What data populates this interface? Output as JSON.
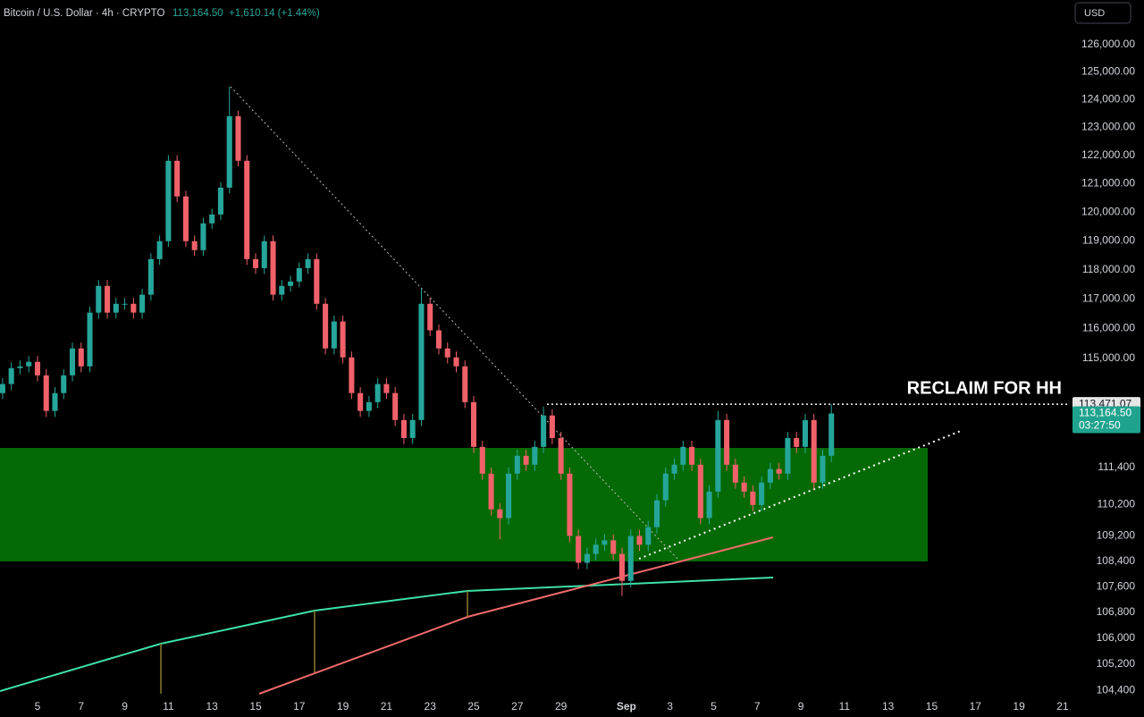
{
  "chart_data": {
    "type": "candlestick",
    "symbol": "Bitcoin / U.S. Dollar · 4h · CRYPTO",
    "last_price_label": "113,164.50",
    "change_label": "+1,610.14 (+1.44%)",
    "currency": "USD",
    "countdown": "03:27:50",
    "annotation": "RECLAIM FOR HH",
    "level": {
      "value": 113471.07,
      "label": "113,471.07"
    },
    "log_scale": true,
    "grid": false,
    "up_color": "#26a69a",
    "down_color": "#f0616a",
    "xlim": [
      -1.72,
      47.25
    ],
    "ylim": [
      104050,
      127650
    ],
    "xticks": [
      {
        "value": 0,
        "label": "5"
      },
      {
        "value": 2,
        "label": "7"
      },
      {
        "value": 4,
        "label": "9"
      },
      {
        "value": 6,
        "label": "11"
      },
      {
        "value": 8,
        "label": "13"
      },
      {
        "value": 10,
        "label": "15"
      },
      {
        "value": 12,
        "label": "17"
      },
      {
        "value": 14,
        "label": "19"
      },
      {
        "value": 16,
        "label": "21"
      },
      {
        "value": 18,
        "label": "23"
      },
      {
        "value": 20,
        "label": "25"
      },
      {
        "value": 22,
        "label": "27"
      },
      {
        "value": 24,
        "label": "29"
      },
      {
        "value": 27,
        "label": "Sep"
      },
      {
        "value": 29,
        "label": "3"
      },
      {
        "value": 31,
        "label": "5"
      },
      {
        "value": 33,
        "label": "7"
      },
      {
        "value": 35,
        "label": "9"
      },
      {
        "value": 37,
        "label": "11"
      },
      {
        "value": 39,
        "label": "13"
      },
      {
        "value": 41,
        "label": "15"
      },
      {
        "value": 43,
        "label": "17"
      },
      {
        "value": 45,
        "label": "19"
      },
      {
        "value": 47,
        "label": "21"
      }
    ],
    "yticks": [
      {
        "value": 126000,
        "label": "126,000.00"
      },
      {
        "value": 125000,
        "label": "125,000.00"
      },
      {
        "value": 124000,
        "label": "124,000.00"
      },
      {
        "value": 123000,
        "label": "123,000.00"
      },
      {
        "value": 122000,
        "label": "122,000.00"
      },
      {
        "value": 121000,
        "label": "121,000.00"
      },
      {
        "value": 120000,
        "label": "120,000.00"
      },
      {
        "value": 119000,
        "label": "119,000.00"
      },
      {
        "value": 118000,
        "label": "118,000.00"
      },
      {
        "value": 117000,
        "label": "117,000.00"
      },
      {
        "value": 116000,
        "label": "116,000.00"
      },
      {
        "value": 115000,
        "label": "115,000.00"
      },
      {
        "value": 111400,
        "label": "111,400"
      },
      {
        "value": 110200,
        "label": "110,200"
      },
      {
        "value": 109200,
        "label": "109,200"
      },
      {
        "value": 108400,
        "label": "108,400"
      },
      {
        "value": 107600,
        "label": "107,600"
      },
      {
        "value": 106800,
        "label": "106,800"
      },
      {
        "value": 106000,
        "label": "106,000"
      },
      {
        "value": 105200,
        "label": "105,200"
      },
      {
        "value": 104400,
        "label": "104,400"
      }
    ],
    "x": [
      -1.6,
      -1.2,
      -0.8,
      -0.4,
      0,
      0.4,
      0.8,
      1.2,
      1.6,
      2,
      2.4,
      2.8,
      3.2,
      3.6,
      4,
      4.4,
      4.8,
      5.2,
      5.6,
      6,
      6.4,
      6.8,
      7.2,
      7.6,
      8,
      8.4,
      8.8,
      9.2,
      9.6,
      10,
      10.4,
      10.8,
      11.2,
      11.6,
      12,
      12.4,
      12.8,
      13.2,
      13.6,
      14,
      14.4,
      14.8,
      15.2,
      15.6,
      16,
      16.4,
      16.8,
      17.2,
      17.6,
      18,
      18.4,
      18.8,
      19.2,
      19.6,
      20,
      20.4,
      20.8,
      21.2,
      21.6,
      22,
      22.4,
      22.8,
      23.2,
      23.6,
      24,
      24.4,
      24.8,
      25.2,
      25.6,
      26,
      26.4,
      26.8,
      27.2,
      27.6,
      28,
      28.4,
      28.8,
      29.2,
      29.6,
      30,
      30.4,
      30.8,
      31.2,
      31.6,
      32,
      32.4,
      32.8,
      33.2,
      33.6,
      34,
      34.4,
      34.8,
      35.2,
      35.6,
      36,
      36.4
    ],
    "open": [
      113840,
      114140,
      114670,
      114730,
      114880,
      114430,
      113250,
      113840,
      114430,
      115330,
      114730,
      116540,
      117450,
      116540,
      116840,
      116840,
      116540,
      117150,
      118370,
      118990,
      121810,
      120550,
      118990,
      118680,
      119610,
      119920,
      120860,
      123400,
      121810,
      118370,
      118060,
      118990,
      117150,
      117450,
      117600,
      118060,
      118370,
      116840,
      115330,
      116240,
      115030,
      113840,
      113250,
      113540,
      114140,
      113840,
      112950,
      112360,
      112950,
      116840,
      115940,
      115330,
      115030,
      114730,
      113540,
      112070,
      111200,
      110050,
      109770,
      111200,
      111780,
      111490,
      112070,
      113100,
      112360,
      111200,
      109200,
      108350,
      108630,
      108920,
      109060,
      108630,
      107780,
      109200,
      108920,
      109480,
      110340,
      111200,
      111490,
      112070,
      111490,
      109770,
      110620,
      112950,
      111490,
      110910,
      110620,
      110190,
      110910,
      111350,
      111200,
      112360,
      112070,
      112950,
      110910,
      111780
    ],
    "high": [
      114340,
      114870,
      114930,
      115080,
      115080,
      114630,
      114040,
      114630,
      115530,
      115530,
      116740,
      117650,
      117650,
      117040,
      117040,
      117040,
      117350,
      118570,
      119190,
      122010,
      122010,
      120750,
      119190,
      119810,
      120120,
      121060,
      124470,
      123600,
      122010,
      118570,
      119190,
      119190,
      117650,
      117800,
      118260,
      118570,
      118570,
      117040,
      116440,
      116440,
      115230,
      114040,
      113740,
      114340,
      114340,
      114040,
      113150,
      113150,
      117360,
      117040,
      116140,
      115530,
      115230,
      114930,
      113740,
      112270,
      111400,
      110250,
      111400,
      111980,
      111980,
      112270,
      113390,
      113300,
      112560,
      111400,
      109400,
      108830,
      109120,
      109260,
      109260,
      108830,
      109400,
      109400,
      109680,
      110540,
      111400,
      111690,
      112270,
      112270,
      111690,
      110820,
      113250,
      113150,
      111690,
      111110,
      110820,
      111110,
      111550,
      111550,
      112560,
      112560,
      113150,
      113150,
      111980,
      113470
    ],
    "low": [
      113640,
      113940,
      114470,
      114530,
      114230,
      113050,
      113050,
      113640,
      114230,
      114530,
      114530,
      116340,
      116340,
      116340,
      116640,
      116340,
      116340,
      116950,
      118170,
      118790,
      120350,
      118790,
      118480,
      118480,
      119410,
      119720,
      120660,
      121610,
      118170,
      117860,
      117860,
      116950,
      116950,
      117250,
      117400,
      117860,
      116640,
      115130,
      115130,
      114830,
      113640,
      113050,
      113050,
      113340,
      113640,
      112750,
      112160,
      112160,
      112750,
      115740,
      115130,
      114830,
      114530,
      113340,
      111870,
      111000,
      109850,
      109100,
      109570,
      111000,
      111290,
      111290,
      111870,
      112160,
      111000,
      109000,
      108150,
      108150,
      108430,
      108720,
      108430,
      107310,
      107580,
      108720,
      108720,
      109280,
      110140,
      111000,
      111290,
      111290,
      109570,
      109570,
      110420,
      111290,
      110710,
      110420,
      109990,
      109990,
      110710,
      111000,
      111000,
      111870,
      111870,
      110710,
      110710,
      111580
    ],
    "close": [
      114140,
      114670,
      114730,
      114880,
      114430,
      113250,
      113840,
      114430,
      115330,
      114730,
      116540,
      117450,
      116540,
      116840,
      116840,
      116540,
      117150,
      118370,
      118990,
      121810,
      120550,
      118990,
      118680,
      119610,
      119920,
      120860,
      123400,
      121810,
      118370,
      118060,
      118990,
      117150,
      117450,
      117600,
      118060,
      118370,
      116840,
      115330,
      116240,
      115030,
      113840,
      113250,
      113540,
      114140,
      113840,
      112950,
      112360,
      112950,
      116840,
      115940,
      115330,
      115030,
      114730,
      113540,
      112070,
      111200,
      110050,
      109770,
      111200,
      111780,
      111490,
      112070,
      113100,
      112360,
      111200,
      109200,
      108350,
      108630,
      108920,
      109060,
      108630,
      107780,
      109200,
      108920,
      109480,
      110340,
      111200,
      111490,
      112070,
      111490,
      109770,
      110620,
      112950,
      111490,
      110910,
      110620,
      110190,
      110910,
      111350,
      111200,
      112360,
      112070,
      112950,
      110910,
      111780,
      113164.5
    ]
  }
}
